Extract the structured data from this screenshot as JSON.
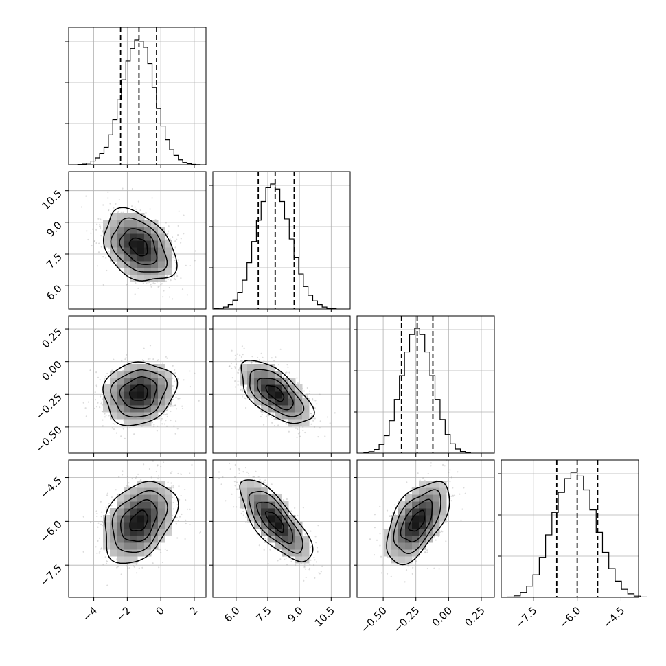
{
  "chart_data": {
    "type": "corner",
    "parameters": [
      {
        "id": "p0",
        "quantiles": [
          -2.4,
          -1.3,
          -0.25
        ],
        "range": [
          -5.5,
          2.7
        ],
        "ticks": [
          -4,
          -2,
          0,
          2
        ],
        "tick_labels": [
          "−4",
          "−2",
          "0",
          "2"
        ],
        "hist_values": [
          0.002,
          0.005,
          0.012,
          0.03,
          0.055,
          0.09,
          0.14,
          0.24,
          0.36,
          0.52,
          0.68,
          0.83,
          0.93,
          1.0,
          0.99,
          0.94,
          0.81,
          0.62,
          0.45,
          0.31,
          0.2,
          0.12,
          0.075,
          0.04,
          0.018,
          0.008,
          0.003,
          0.001
        ]
      },
      {
        "id": "p1",
        "quantiles": [
          7.05,
          7.85,
          8.75
        ],
        "range": [
          4.9,
          11.4
        ],
        "ticks": [
          6.0,
          7.5,
          9.0,
          10.5
        ],
        "tick_labels": [
          "6.0",
          "7.5",
          "9.0",
          "10.5"
        ],
        "hist_values": [
          0.002,
          0.007,
          0.016,
          0.035,
          0.07,
          0.13,
          0.23,
          0.37,
          0.54,
          0.71,
          0.86,
          0.97,
          1.0,
          0.96,
          0.86,
          0.72,
          0.56,
          0.41,
          0.28,
          0.18,
          0.11,
          0.065,
          0.035,
          0.016,
          0.006,
          0.002
        ]
      },
      {
        "id": "p2",
        "quantiles": [
          -0.36,
          -0.24,
          -0.12
        ],
        "range": [
          -0.7,
          0.35
        ],
        "ticks": [
          -0.5,
          -0.25,
          0.0,
          0.25
        ],
        "tick_labels": [
          "−0.50",
          "−0.25",
          "0.00",
          "0.25"
        ],
        "hist_values": [
          0.004,
          0.012,
          0.03,
          0.07,
          0.14,
          0.26,
          0.43,
          0.62,
          0.81,
          0.95,
          1.0,
          0.95,
          0.81,
          0.62,
          0.43,
          0.27,
          0.15,
          0.075,
          0.033,
          0.013,
          0.004
        ]
      },
      {
        "id": "p3",
        "quantiles": [
          -6.7,
          -6.0,
          -5.3
        ],
        "range": [
          -8.6,
          -3.9
        ],
        "ticks": [
          -7.5,
          -6.0,
          -4.5
        ],
        "tick_labels": [
          "−7.5",
          "−6.0",
          "−4.5"
        ],
        "hist_values": [
          0.003,
          0.012,
          0.04,
          0.09,
          0.18,
          0.32,
          0.5,
          0.68,
          0.84,
          0.95,
          1.0,
          0.97,
          0.86,
          0.7,
          0.52,
          0.36,
          0.23,
          0.13,
          0.065,
          0.028,
          0.01,
          0.003
        ]
      }
    ],
    "correlations": {
      "1,0": -0.35,
      "2,0": 0.12,
      "2,1": -0.62,
      "3,0": 0.35,
      "3,1": -0.75,
      "3,2": 0.55
    },
    "contour_sigmas": [
      0.5,
      1.0,
      1.5,
      2.0
    ],
    "grid": true
  }
}
